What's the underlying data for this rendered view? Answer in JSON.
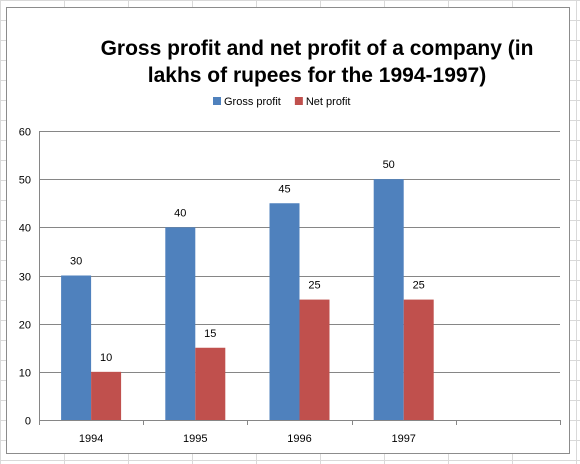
{
  "chart_data": {
    "type": "bar",
    "title": "Gross profit and net profit of a company (in lakhs of rupees for the 1994-1997)",
    "title_lines": [
      "Gross profit and net profit of a company (in",
      "lakhs of rupees for the 1994-1997)"
    ],
    "categories": [
      "1994",
      "1995",
      "1996",
      "1997"
    ],
    "series": [
      {
        "name": "Gross profit",
        "color": "#4f81bd",
        "values": [
          30,
          40,
          45,
          50
        ]
      },
      {
        "name": "Net profit",
        "color": "#c0504d",
        "values": [
          10,
          15,
          25,
          25
        ]
      }
    ],
    "ylim": [
      0,
      60
    ],
    "yticks": [
      0,
      10,
      20,
      30,
      40,
      50,
      60
    ],
    "grid": true,
    "legend": "top",
    "data_labels": true,
    "xlabel": "",
    "ylabel": ""
  }
}
